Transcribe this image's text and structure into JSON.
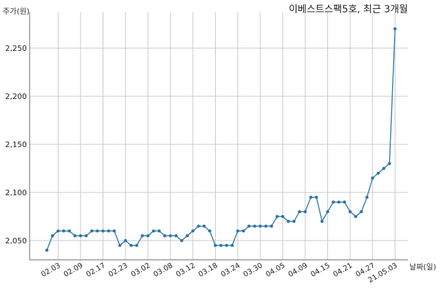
{
  "chart_data": {
    "type": "line",
    "title": "이베스트스팩5호, 최근 3개월",
    "ylabel": "주가(원)",
    "xlabel": "날짜(일)",
    "ylim": [
      2030,
      2285
    ],
    "yticks": [
      2050,
      2100,
      2150,
      2200,
      2250
    ],
    "ytick_labels": [
      "2,050",
      "2,100",
      "2,150",
      "2,200",
      "2,250"
    ],
    "x_tick_labels": [
      "02.03",
      "02.09",
      "02.17",
      "02.23",
      "03.02",
      "03.08",
      "03.12",
      "03.18",
      "03.24",
      "03.30",
      "04.05",
      "04.09",
      "04.15",
      "04.21",
      "04.27",
      "21.05.03"
    ],
    "x_tick_index": [
      2,
      6,
      10,
      14,
      18,
      22,
      26,
      30,
      34,
      38,
      42,
      46,
      50,
      54,
      58,
      62
    ],
    "grid": true,
    "series": [
      {
        "color": "#3a7fad",
        "values": [
          2040,
          2055,
          2060,
          2060,
          2060,
          2055,
          2055,
          2055,
          2060,
          2060,
          2060,
          2060,
          2060,
          2045,
          2050,
          2045,
          2045,
          2055,
          2055,
          2060,
          2060,
          2055,
          2055,
          2055,
          2050,
          2055,
          2060,
          2065,
          2065,
          2060,
          2045,
          2045,
          2045,
          2045,
          2060,
          2060,
          2065,
          2065,
          2065,
          2065,
          2065,
          2075,
          2075,
          2070,
          2070,
          2080,
          2080,
          2095,
          2095,
          2070,
          2080,
          2090,
          2090,
          2090,
          2080,
          2075,
          2080,
          2095,
          2115,
          2120,
          2125,
          2130,
          2270
        ]
      }
    ]
  }
}
